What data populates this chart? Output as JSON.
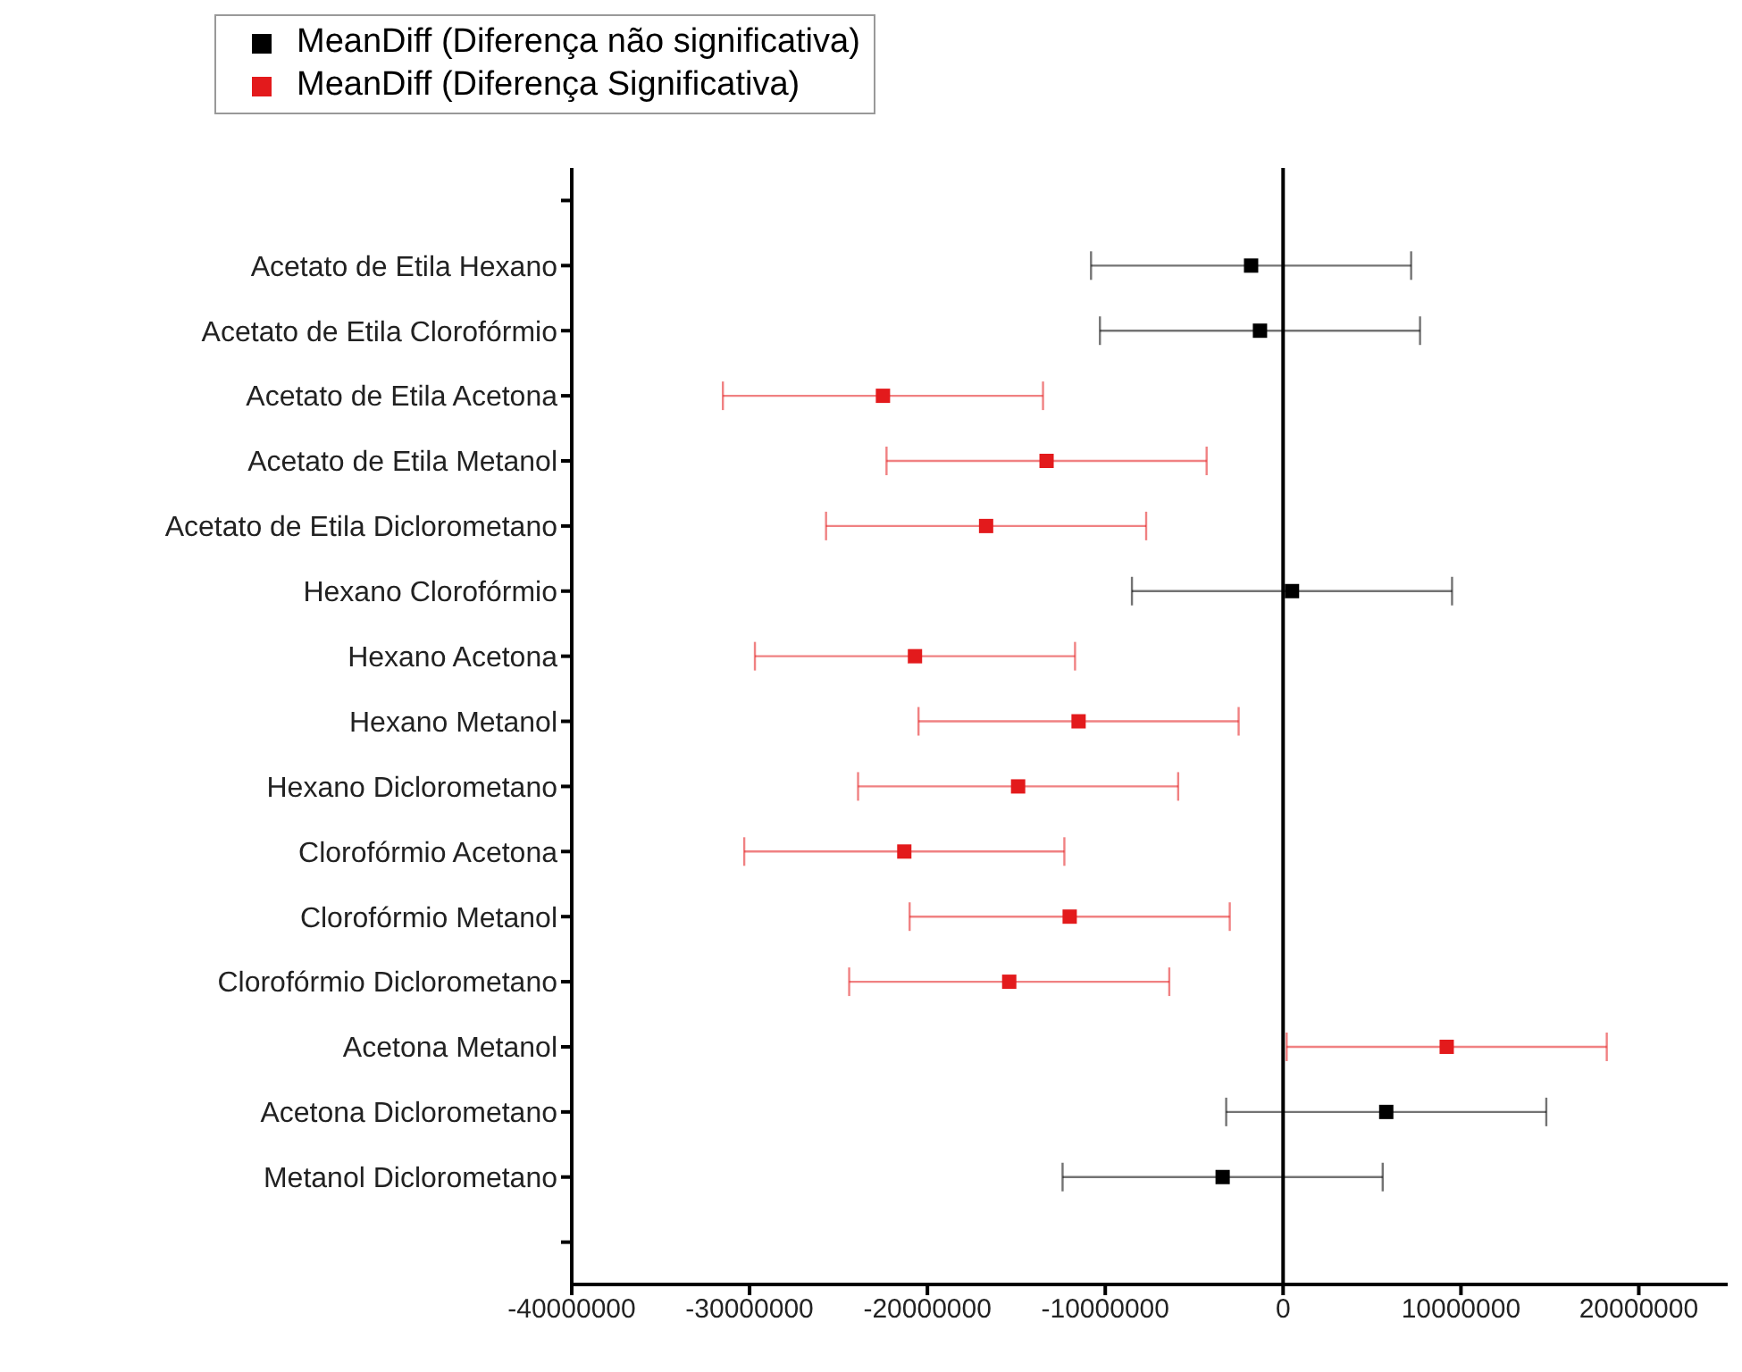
{
  "chart_data": {
    "type": "scatter",
    "orientation": "horizontal",
    "categories": [
      null,
      "Acetato de Etila  Hexano",
      "Acetato de Etila  Clorofórmio",
      "Acetato de Etila  Acetona",
      "Acetato de Etila  Metanol",
      "Acetato de Etila  Diclorometano",
      "Hexano  Clorofórmio",
      "Hexano  Acetona",
      "Hexano  Metanol",
      "Hexano  Diclorometano",
      "Clorofórmio  Acetona",
      "Clorofórmio  Metanol",
      "Clorofórmio  Diclorometano",
      "Acetona  Metanol",
      "Acetona  Diclorometano",
      "Metanol  Diclorometano",
      null
    ],
    "series": [
      {
        "name": "MeanDiff (Diferença não significativa)",
        "color": "#000000",
        "values": [
          null,
          -1800000,
          -1300000,
          null,
          null,
          null,
          500000,
          null,
          null,
          null,
          null,
          null,
          null,
          null,
          5800000,
          -3400000,
          null
        ],
        "errors": [
          null,
          9000000,
          9000000,
          null,
          null,
          null,
          9000000,
          null,
          null,
          null,
          null,
          null,
          null,
          null,
          9000000,
          9000000,
          null
        ]
      },
      {
        "name": "MeanDiff (Diferença Significativa)",
        "color": "#e31a1c",
        "values": [
          null,
          null,
          null,
          -22500000,
          -13300000,
          -16700000,
          null,
          -20700000,
          -11500000,
          -14900000,
          -21300000,
          -12000000,
          -15400000,
          9200000,
          null,
          null,
          null
        ],
        "errors": [
          null,
          null,
          null,
          9000000,
          9000000,
          9000000,
          null,
          9000000,
          9000000,
          9000000,
          9000000,
          9000000,
          9000000,
          9000000,
          null,
          null,
          null
        ]
      }
    ],
    "xlim": [
      -40000000,
      25000000
    ],
    "xticks": [
      -40000000,
      -30000000,
      -20000000,
      -10000000,
      0,
      10000000,
      20000000
    ],
    "ref_lines": [
      {
        "axis": "x",
        "value": 0,
        "color": "#000000"
      }
    ],
    "marker": "square",
    "legend": "top left",
    "grid": false
  }
}
